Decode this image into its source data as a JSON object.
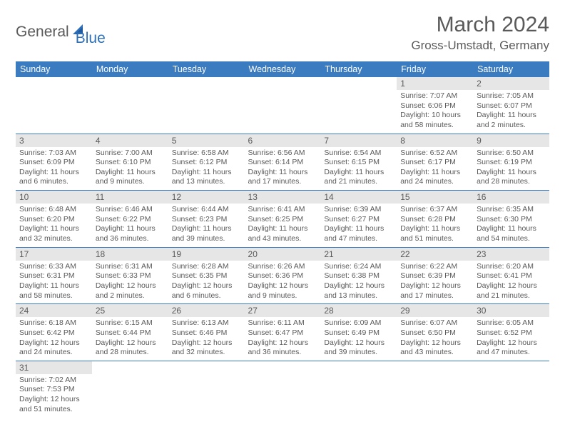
{
  "logo": {
    "text1": "General",
    "text2": "Blue"
  },
  "title": "March 2024",
  "location": "Gross-Umstadt, Germany",
  "colors": {
    "header_bg": "#3b7bbf",
    "header_text": "#ffffff",
    "daynum_bg": "#e6e6e6",
    "body_text": "#5a5a5a",
    "row_border": "#3b7bbf",
    "logo_blue": "#2d6fb8"
  },
  "weekdays": [
    "Sunday",
    "Monday",
    "Tuesday",
    "Wednesday",
    "Thursday",
    "Friday",
    "Saturday"
  ],
  "weeks": [
    [
      null,
      null,
      null,
      null,
      null,
      {
        "n": "1",
        "sr": "Sunrise: 7:07 AM",
        "ss": "Sunset: 6:06 PM",
        "dl": "Daylight: 10 hours and 58 minutes."
      },
      {
        "n": "2",
        "sr": "Sunrise: 7:05 AM",
        "ss": "Sunset: 6:07 PM",
        "dl": "Daylight: 11 hours and 2 minutes."
      }
    ],
    [
      {
        "n": "3",
        "sr": "Sunrise: 7:03 AM",
        "ss": "Sunset: 6:09 PM",
        "dl": "Daylight: 11 hours and 6 minutes."
      },
      {
        "n": "4",
        "sr": "Sunrise: 7:00 AM",
        "ss": "Sunset: 6:10 PM",
        "dl": "Daylight: 11 hours and 9 minutes."
      },
      {
        "n": "5",
        "sr": "Sunrise: 6:58 AM",
        "ss": "Sunset: 6:12 PM",
        "dl": "Daylight: 11 hours and 13 minutes."
      },
      {
        "n": "6",
        "sr": "Sunrise: 6:56 AM",
        "ss": "Sunset: 6:14 PM",
        "dl": "Daylight: 11 hours and 17 minutes."
      },
      {
        "n": "7",
        "sr": "Sunrise: 6:54 AM",
        "ss": "Sunset: 6:15 PM",
        "dl": "Daylight: 11 hours and 21 minutes."
      },
      {
        "n": "8",
        "sr": "Sunrise: 6:52 AM",
        "ss": "Sunset: 6:17 PM",
        "dl": "Daylight: 11 hours and 24 minutes."
      },
      {
        "n": "9",
        "sr": "Sunrise: 6:50 AM",
        "ss": "Sunset: 6:19 PM",
        "dl": "Daylight: 11 hours and 28 minutes."
      }
    ],
    [
      {
        "n": "10",
        "sr": "Sunrise: 6:48 AM",
        "ss": "Sunset: 6:20 PM",
        "dl": "Daylight: 11 hours and 32 minutes."
      },
      {
        "n": "11",
        "sr": "Sunrise: 6:46 AM",
        "ss": "Sunset: 6:22 PM",
        "dl": "Daylight: 11 hours and 36 minutes."
      },
      {
        "n": "12",
        "sr": "Sunrise: 6:44 AM",
        "ss": "Sunset: 6:23 PM",
        "dl": "Daylight: 11 hours and 39 minutes."
      },
      {
        "n": "13",
        "sr": "Sunrise: 6:41 AM",
        "ss": "Sunset: 6:25 PM",
        "dl": "Daylight: 11 hours and 43 minutes."
      },
      {
        "n": "14",
        "sr": "Sunrise: 6:39 AM",
        "ss": "Sunset: 6:27 PM",
        "dl": "Daylight: 11 hours and 47 minutes."
      },
      {
        "n": "15",
        "sr": "Sunrise: 6:37 AM",
        "ss": "Sunset: 6:28 PM",
        "dl": "Daylight: 11 hours and 51 minutes."
      },
      {
        "n": "16",
        "sr": "Sunrise: 6:35 AM",
        "ss": "Sunset: 6:30 PM",
        "dl": "Daylight: 11 hours and 54 minutes."
      }
    ],
    [
      {
        "n": "17",
        "sr": "Sunrise: 6:33 AM",
        "ss": "Sunset: 6:31 PM",
        "dl": "Daylight: 11 hours and 58 minutes."
      },
      {
        "n": "18",
        "sr": "Sunrise: 6:31 AM",
        "ss": "Sunset: 6:33 PM",
        "dl": "Daylight: 12 hours and 2 minutes."
      },
      {
        "n": "19",
        "sr": "Sunrise: 6:28 AM",
        "ss": "Sunset: 6:35 PM",
        "dl": "Daylight: 12 hours and 6 minutes."
      },
      {
        "n": "20",
        "sr": "Sunrise: 6:26 AM",
        "ss": "Sunset: 6:36 PM",
        "dl": "Daylight: 12 hours and 9 minutes."
      },
      {
        "n": "21",
        "sr": "Sunrise: 6:24 AM",
        "ss": "Sunset: 6:38 PM",
        "dl": "Daylight: 12 hours and 13 minutes."
      },
      {
        "n": "22",
        "sr": "Sunrise: 6:22 AM",
        "ss": "Sunset: 6:39 PM",
        "dl": "Daylight: 12 hours and 17 minutes."
      },
      {
        "n": "23",
        "sr": "Sunrise: 6:20 AM",
        "ss": "Sunset: 6:41 PM",
        "dl": "Daylight: 12 hours and 21 minutes."
      }
    ],
    [
      {
        "n": "24",
        "sr": "Sunrise: 6:18 AM",
        "ss": "Sunset: 6:42 PM",
        "dl": "Daylight: 12 hours and 24 minutes."
      },
      {
        "n": "25",
        "sr": "Sunrise: 6:15 AM",
        "ss": "Sunset: 6:44 PM",
        "dl": "Daylight: 12 hours and 28 minutes."
      },
      {
        "n": "26",
        "sr": "Sunrise: 6:13 AM",
        "ss": "Sunset: 6:46 PM",
        "dl": "Daylight: 12 hours and 32 minutes."
      },
      {
        "n": "27",
        "sr": "Sunrise: 6:11 AM",
        "ss": "Sunset: 6:47 PM",
        "dl": "Daylight: 12 hours and 36 minutes."
      },
      {
        "n": "28",
        "sr": "Sunrise: 6:09 AM",
        "ss": "Sunset: 6:49 PM",
        "dl": "Daylight: 12 hours and 39 minutes."
      },
      {
        "n": "29",
        "sr": "Sunrise: 6:07 AM",
        "ss": "Sunset: 6:50 PM",
        "dl": "Daylight: 12 hours and 43 minutes."
      },
      {
        "n": "30",
        "sr": "Sunrise: 6:05 AM",
        "ss": "Sunset: 6:52 PM",
        "dl": "Daylight: 12 hours and 47 minutes."
      }
    ],
    [
      {
        "n": "31",
        "sr": "Sunrise: 7:02 AM",
        "ss": "Sunset: 7:53 PM",
        "dl": "Daylight: 12 hours and 51 minutes."
      },
      null,
      null,
      null,
      null,
      null,
      null
    ]
  ]
}
